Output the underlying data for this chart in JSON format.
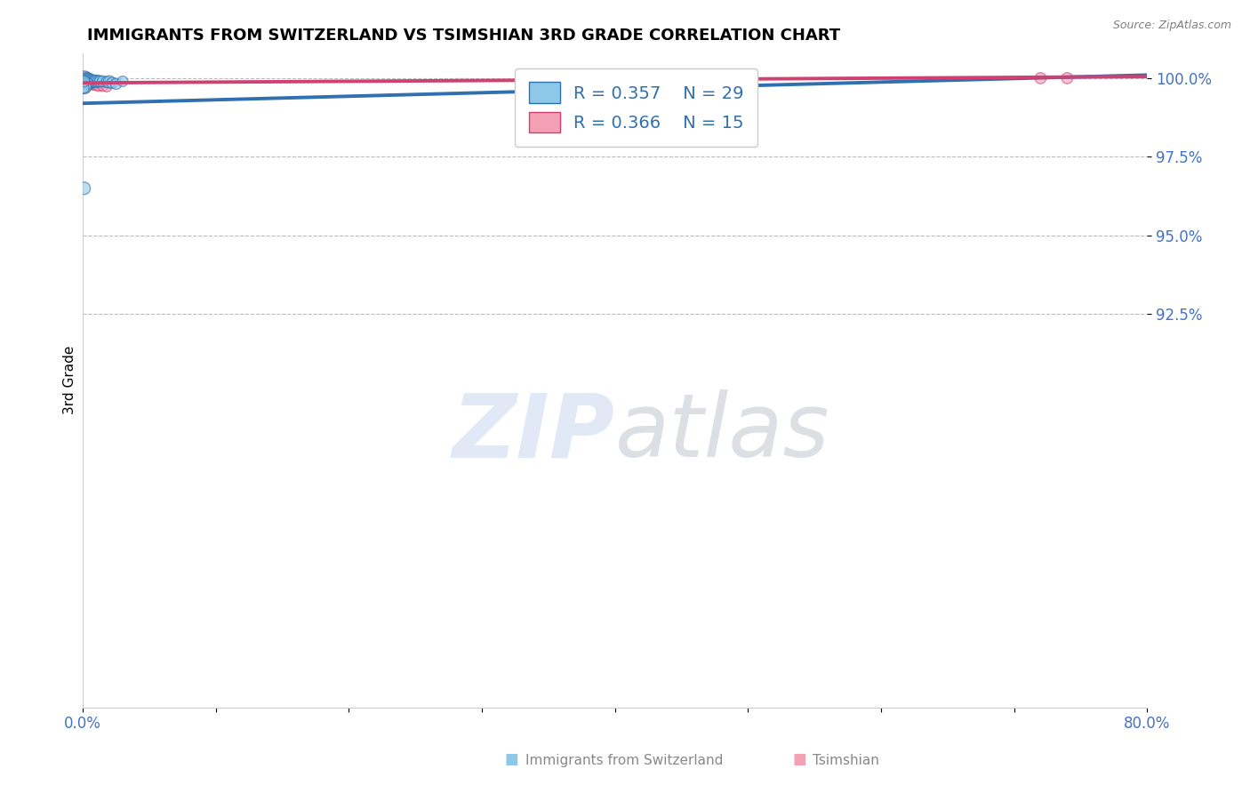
{
  "title": "IMMIGRANTS FROM SWITZERLAND VS TSIMSHIAN 3RD GRADE CORRELATION CHART",
  "source": "Source: ZipAtlas.com",
  "ylabel": "3rd Grade",
  "R1": 0.357,
  "N1": 29,
  "R2": 0.366,
  "N2": 15,
  "xlim": [
    0.0,
    0.8
  ],
  "ylim": [
    0.8,
    1.008
  ],
  "ytick_values": [
    1.0,
    0.975,
    0.95,
    0.925
  ],
  "ytick_labels": [
    "100.0%",
    "97.5%",
    "95.0%",
    "92.5%"
  ],
  "xtick_positions": [
    0.0,
    0.1,
    0.2,
    0.3,
    0.4,
    0.5,
    0.6,
    0.7,
    0.8
  ],
  "xtick_labels": [
    "0.0%",
    "",
    "",
    "",
    "",
    "",
    "",
    "",
    "80.0%"
  ],
  "color_blue": "#8ec8e8",
  "color_pink": "#f4a0b5",
  "color_blue_line": "#3070b0",
  "color_pink_line": "#d04070",
  "color_axis_labels": "#4472C4",
  "color_grid": "#bbbbbb",
  "blue_x": [
    0.001,
    0.002,
    0.003,
    0.003,
    0.004,
    0.004,
    0.005,
    0.006,
    0.007,
    0.008,
    0.009,
    0.01,
    0.011,
    0.012,
    0.013,
    0.015,
    0.018,
    0.02,
    0.022,
    0.025,
    0.002,
    0.003,
    0.004,
    0.001,
    0.001,
    0.03,
    0.001,
    0.001,
    0.001
  ],
  "blue_y": [
    0.9995,
    0.9993,
    0.9992,
    0.9991,
    0.999,
    0.999,
    0.999,
    0.999,
    0.999,
    0.999,
    0.999,
    0.999,
    0.999,
    0.999,
    0.999,
    0.999,
    0.9988,
    0.9988,
    0.9985,
    0.9982,
    0.9988,
    0.9985,
    0.9983,
    0.9975,
    0.9972,
    0.999,
    0.9968,
    0.965,
    0.999
  ],
  "blue_sizes": [
    200,
    120,
    180,
    160,
    140,
    160,
    130,
    120,
    110,
    100,
    100,
    100,
    90,
    80,
    80,
    80,
    80,
    100,
    80,
    80,
    80,
    80,
    70,
    150,
    120,
    70,
    60,
    100,
    80
  ],
  "pink_x": [
    0.001,
    0.002,
    0.003,
    0.003,
    0.004,
    0.005,
    0.006,
    0.007,
    0.008,
    0.01,
    0.012,
    0.015,
    0.018,
    0.72,
    0.74
  ],
  "pink_y": [
    0.9993,
    0.999,
    0.999,
    0.9988,
    0.9985,
    0.9985,
    0.9983,
    0.9982,
    0.998,
    0.9978,
    0.9976,
    0.9975,
    0.9973,
    1.0,
    1.0
  ],
  "pink_sizes": [
    200,
    130,
    110,
    100,
    100,
    90,
    90,
    80,
    80,
    80,
    80,
    70,
    70,
    80,
    80
  ],
  "watermark_zip": "ZIP",
  "watermark_atlas": "atlas",
  "bottom_label1": "Immigrants from Switzerland",
  "bottom_label2": "Tsimshian"
}
